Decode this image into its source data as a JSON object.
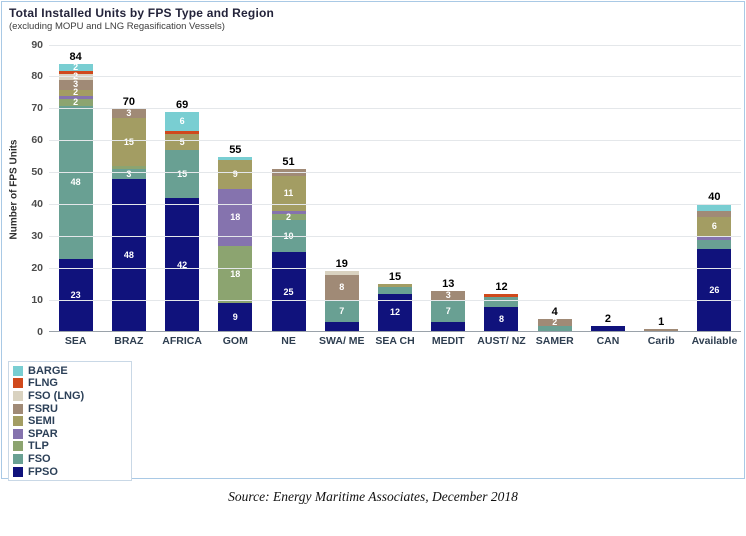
{
  "title": "Total Installed Units by FPS Type and Region",
  "subtitle": "(excluding MOPU and LNG Regasification Vessels)",
  "source": "Source: Energy Maritime Associates, December 2018",
  "y_axis": {
    "label": "Number of FPS Units",
    "ticks": [
      0,
      10,
      20,
      30,
      40,
      50,
      60,
      70,
      80,
      90
    ],
    "max": 90
  },
  "colors": {
    "FPSO": "#10127c",
    "FSO": "#69a093",
    "TLP": "#8ca470",
    "SPAR": "#8573ae",
    "SEMI": "#a39d63",
    "FSRU": "#a08a76",
    "FSO (LNG)": "#d9d2c0",
    "FLNG": "#d0491c",
    "BARGE": "#79ced2"
  },
  "legend": {
    "position": "bottom-left",
    "items_top_to_bottom": [
      "BARGE",
      "FLNG",
      "FSO (LNG)",
      "FSRU",
      "SEMI",
      "SPAR",
      "TLP",
      "FSO",
      "FPSO"
    ]
  },
  "chart_data": {
    "type": "bar",
    "stacked": true,
    "categories": [
      "SEA",
      "BRAZ",
      "AFRICA",
      "GOM",
      "NE",
      "SWA/ ME",
      "SEA CH",
      "MEDIT",
      "AUST/ NZ",
      "SAMER",
      "CAN",
      "Carib",
      "Available"
    ],
    "totals": [
      84,
      70,
      69,
      55,
      51,
      19,
      15,
      13,
      12,
      4,
      2,
      1,
      40
    ],
    "ylim": [
      0,
      90
    ],
    "grid": true,
    "series_bottom_to_top": [
      {
        "name": "FPSO",
        "values": [
          23,
          48,
          42,
          9,
          25,
          3,
          12,
          3,
          8,
          0,
          2,
          0,
          26
        ],
        "labels": [
          23,
          48,
          42,
          9,
          25,
          null,
          12,
          null,
          8,
          null,
          null,
          null,
          26
        ]
      },
      {
        "name": "FSO",
        "values": [
          48,
          3,
          15,
          0,
          10,
          7,
          2,
          7,
          3,
          2,
          0,
          0,
          3
        ],
        "labels": [
          48,
          3,
          15,
          null,
          10,
          7,
          null,
          7,
          null,
          null,
          null,
          null,
          null
        ]
      },
      {
        "name": "TLP",
        "values": [
          2,
          1,
          0,
          18,
          2,
          0,
          0,
          0,
          0,
          0,
          0,
          0,
          0
        ],
        "labels": [
          2,
          null,
          null,
          18,
          2,
          null,
          null,
          null,
          null,
          null,
          null,
          null,
          null
        ]
      },
      {
        "name": "SPAR",
        "values": [
          1,
          0,
          0,
          18,
          1,
          0,
          0,
          0,
          0,
          0,
          0,
          0,
          1
        ],
        "labels": [
          null,
          null,
          null,
          18,
          null,
          null,
          null,
          null,
          null,
          null,
          null,
          null,
          null
        ]
      },
      {
        "name": "SEMI",
        "values": [
          2,
          15,
          5,
          9,
          11,
          0,
          1,
          0,
          0,
          0,
          0,
          0,
          6
        ],
        "labels": [
          2,
          15,
          5,
          9,
          11,
          null,
          null,
          null,
          null,
          null,
          null,
          null,
          6
        ]
      },
      {
        "name": "FSRU",
        "values": [
          3,
          3,
          0,
          0,
          2,
          8,
          0,
          3,
          0,
          2,
          0,
          1,
          2
        ],
        "labels": [
          3,
          3,
          null,
          null,
          null,
          8,
          null,
          3,
          null,
          2,
          null,
          null,
          null
        ]
      },
      {
        "name": "FSO (LNG)",
        "values": [
          2,
          0,
          0,
          0,
          0,
          1,
          0,
          0,
          0,
          0,
          0,
          0,
          0
        ],
        "labels": [
          2,
          null,
          null,
          null,
          null,
          null,
          null,
          null,
          null,
          null,
          null,
          null,
          null
        ]
      },
      {
        "name": "FLNG",
        "values": [
          1,
          0,
          1,
          0,
          0,
          0,
          0,
          0,
          1,
          0,
          0,
          0,
          0
        ],
        "labels": [
          null,
          null,
          null,
          null,
          null,
          null,
          null,
          null,
          null,
          null,
          null,
          null,
          null
        ]
      },
      {
        "name": "BARGE",
        "values": [
          2,
          0,
          6,
          1,
          0,
          0,
          0,
          0,
          0,
          0,
          0,
          0,
          2
        ],
        "labels": [
          2,
          null,
          6,
          null,
          null,
          null,
          null,
          null,
          null,
          null,
          null,
          null,
          null
        ]
      }
    ]
  }
}
